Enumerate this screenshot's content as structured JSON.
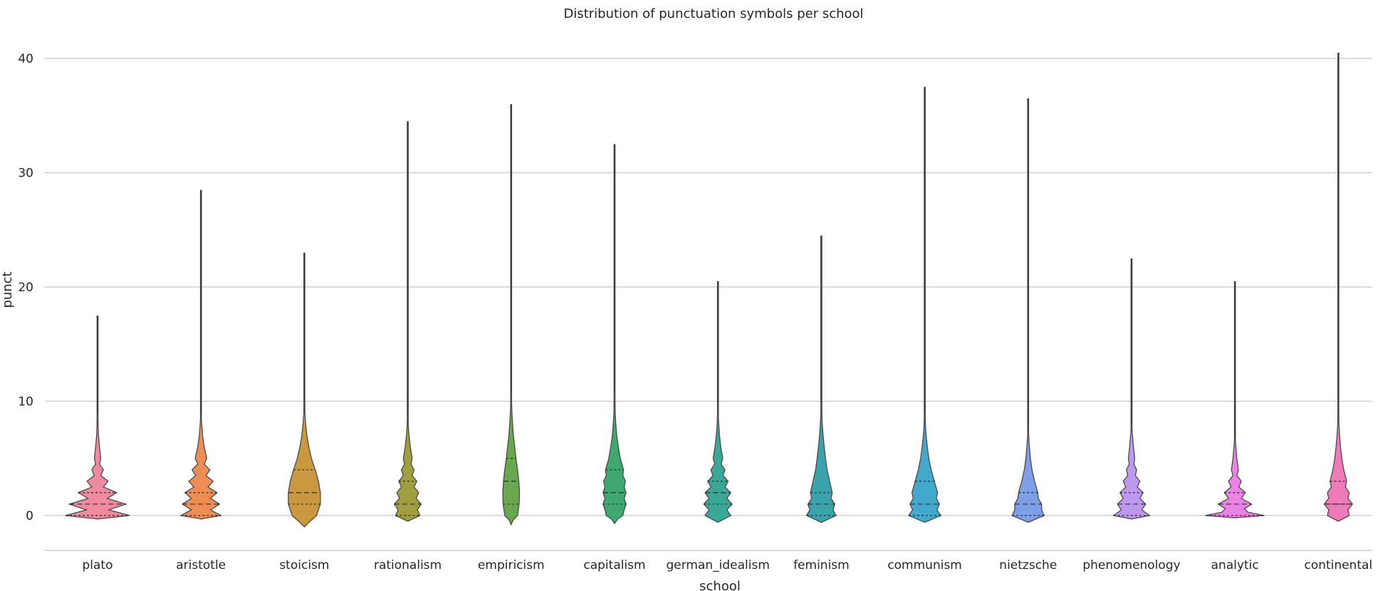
{
  "chart_data": {
    "type": "violin",
    "title": "Distribution of punctuation symbols per school",
    "xlabel": "school",
    "ylabel": "punct",
    "ylim": [
      -3,
      42
    ],
    "yticks": [
      0,
      10,
      20,
      30,
      40
    ],
    "grid": "horizontal",
    "categories": [
      "plato",
      "aristotle",
      "stoicism",
      "rationalism",
      "empiricism",
      "capitalism",
      "german_idealism",
      "feminism",
      "communism",
      "nietzsche",
      "phenomenology",
      "analytic",
      "continental"
    ],
    "colors": [
      "#f08aa0",
      "#ee8e54",
      "#c9983f",
      "#9f9f40",
      "#6aa84f",
      "#3fa870",
      "#3aa896",
      "#3aa3ab",
      "#42a8cc",
      "#7c9fe6",
      "#be98ee",
      "#ec82e6",
      "#ee7ab8"
    ],
    "series": [
      {
        "school": "plato",
        "min": 0,
        "max": 17.5,
        "q1": 0,
        "median": 1,
        "q3": 2,
        "density": [
          [
            -0.3,
            0.0
          ],
          [
            0,
            1.0
          ],
          [
            0.5,
            0.35
          ],
          [
            1,
            0.88
          ],
          [
            1.5,
            0.3
          ],
          [
            2,
            0.6
          ],
          [
            2.5,
            0.18
          ],
          [
            3,
            0.33
          ],
          [
            3.5,
            0.1
          ],
          [
            4,
            0.18
          ],
          [
            4.5,
            0.06
          ],
          [
            5,
            0.1
          ],
          [
            6,
            0.06
          ],
          [
            7,
            0.03
          ],
          [
            8,
            0.015
          ],
          [
            9,
            0.0
          ]
        ]
      },
      {
        "school": "aristotle",
        "min": 0,
        "max": 28.5,
        "q1": 0,
        "median": 1,
        "q3": 2,
        "density": [
          [
            -0.3,
            0.0
          ],
          [
            0,
            0.62
          ],
          [
            0.5,
            0.3
          ],
          [
            1,
            0.58
          ],
          [
            1.5,
            0.3
          ],
          [
            2,
            0.5
          ],
          [
            2.5,
            0.22
          ],
          [
            3,
            0.38
          ],
          [
            3.5,
            0.16
          ],
          [
            4,
            0.28
          ],
          [
            4.5,
            0.1
          ],
          [
            5,
            0.18
          ],
          [
            6,
            0.1
          ],
          [
            7,
            0.05
          ],
          [
            8,
            0.025
          ],
          [
            9,
            0.0
          ]
        ]
      },
      {
        "school": "stoicism",
        "min": 0,
        "max": 23,
        "q1": 1,
        "median": 2,
        "q3": 4,
        "density": [
          [
            -1,
            0.0
          ],
          [
            -0.5,
            0.18
          ],
          [
            0,
            0.38
          ],
          [
            1,
            0.5
          ],
          [
            2,
            0.5
          ],
          [
            3,
            0.44
          ],
          [
            4,
            0.34
          ],
          [
            5,
            0.22
          ],
          [
            6,
            0.14
          ],
          [
            7,
            0.08
          ],
          [
            8,
            0.04
          ],
          [
            9,
            0.015
          ],
          [
            10,
            0.0
          ]
        ]
      },
      {
        "school": "rationalism",
        "min": 0,
        "max": 34.5,
        "q1": 0,
        "median": 1,
        "q3": 3,
        "density": [
          [
            -0.5,
            0.0
          ],
          [
            0,
            0.38
          ],
          [
            0.5,
            0.3
          ],
          [
            1,
            0.42
          ],
          [
            1.5,
            0.26
          ],
          [
            2,
            0.34
          ],
          [
            2.5,
            0.2
          ],
          [
            3,
            0.28
          ],
          [
            3.5,
            0.14
          ],
          [
            4,
            0.2
          ],
          [
            4.5,
            0.1
          ],
          [
            5,
            0.14
          ],
          [
            6,
            0.08
          ],
          [
            7,
            0.04
          ],
          [
            8,
            0.015
          ],
          [
            9,
            0.0
          ]
        ]
      },
      {
        "school": "empiricism",
        "min": 0,
        "max": 36,
        "q1": 1,
        "median": 3,
        "q3": 5,
        "density": [
          [
            -0.8,
            0.0
          ],
          [
            -0.4,
            0.06
          ],
          [
            0,
            0.2
          ],
          [
            1,
            0.25
          ],
          [
            2,
            0.26
          ],
          [
            3,
            0.24
          ],
          [
            4,
            0.2
          ],
          [
            5,
            0.15
          ],
          [
            6,
            0.11
          ],
          [
            7,
            0.07
          ],
          [
            8,
            0.045
          ],
          [
            9,
            0.025
          ],
          [
            10,
            0.012
          ],
          [
            11,
            0.0
          ]
        ]
      },
      {
        "school": "capitalism",
        "min": 0,
        "max": 32.5,
        "q1": 1,
        "median": 2,
        "q3": 4,
        "density": [
          [
            -0.7,
            0.0
          ],
          [
            -0.3,
            0.1
          ],
          [
            0,
            0.26
          ],
          [
            0.5,
            0.3
          ],
          [
            1,
            0.36
          ],
          [
            1.5,
            0.3
          ],
          [
            2,
            0.36
          ],
          [
            2.5,
            0.3
          ],
          [
            3,
            0.34
          ],
          [
            3.5,
            0.26
          ],
          [
            4,
            0.28
          ],
          [
            5,
            0.18
          ],
          [
            6,
            0.12
          ],
          [
            7,
            0.07
          ],
          [
            8,
            0.04
          ],
          [
            9,
            0.02
          ],
          [
            10,
            0.01
          ],
          [
            11,
            0.0
          ]
        ]
      },
      {
        "school": "german_idealism",
        "min": 0,
        "max": 20.5,
        "q1": 1,
        "median": 2,
        "q3": 3,
        "density": [
          [
            -0.6,
            0.0
          ],
          [
            0,
            0.4
          ],
          [
            0.5,
            0.28
          ],
          [
            1,
            0.44
          ],
          [
            1.5,
            0.28
          ],
          [
            2,
            0.4
          ],
          [
            2.5,
            0.22
          ],
          [
            3,
            0.32
          ],
          [
            3.5,
            0.16
          ],
          [
            4,
            0.22
          ],
          [
            4.5,
            0.1
          ],
          [
            5,
            0.15
          ],
          [
            6,
            0.09
          ],
          [
            7,
            0.05
          ],
          [
            8,
            0.025
          ],
          [
            9,
            0.01
          ],
          [
            10,
            0.0
          ]
        ]
      },
      {
        "school": "feminism",
        "min": 0,
        "max": 24.5,
        "q1": 0,
        "median": 1,
        "q3": 2,
        "density": [
          [
            -0.6,
            0.0
          ],
          [
            0,
            0.46
          ],
          [
            0.5,
            0.36
          ],
          [
            1,
            0.42
          ],
          [
            1.5,
            0.3
          ],
          [
            2,
            0.34
          ],
          [
            3,
            0.26
          ],
          [
            4,
            0.18
          ],
          [
            5,
            0.13
          ],
          [
            6,
            0.09
          ],
          [
            7,
            0.055
          ],
          [
            8,
            0.03
          ],
          [
            9,
            0.015
          ],
          [
            10,
            0.0
          ]
        ]
      },
      {
        "school": "communism",
        "min": 0,
        "max": 37.5,
        "q1": 0,
        "median": 1,
        "q3": 3,
        "density": [
          [
            -0.6,
            0.0
          ],
          [
            0,
            0.5
          ],
          [
            0.5,
            0.38
          ],
          [
            1,
            0.46
          ],
          [
            1.5,
            0.36
          ],
          [
            2,
            0.4
          ],
          [
            3,
            0.3
          ],
          [
            4,
            0.2
          ],
          [
            5,
            0.13
          ],
          [
            6,
            0.08
          ],
          [
            7,
            0.045
          ],
          [
            8,
            0.02
          ],
          [
            9,
            0.0
          ]
        ]
      },
      {
        "school": "nietzsche",
        "min": 0,
        "max": 36.5,
        "q1": 0,
        "median": 1,
        "q3": 2,
        "density": [
          [
            -0.6,
            0.0
          ],
          [
            0,
            0.5
          ],
          [
            0.5,
            0.42
          ],
          [
            1,
            0.42
          ],
          [
            1.5,
            0.32
          ],
          [
            2,
            0.3
          ],
          [
            3,
            0.2
          ],
          [
            4,
            0.12
          ],
          [
            5,
            0.07
          ],
          [
            6,
            0.04
          ],
          [
            7,
            0.015
          ],
          [
            8,
            0.0
          ]
        ]
      },
      {
        "school": "phenomenology",
        "min": 0,
        "max": 22.5,
        "q1": 0,
        "median": 1,
        "q3": 2,
        "density": [
          [
            -0.3,
            0.0
          ],
          [
            0,
            0.56
          ],
          [
            0.5,
            0.32
          ],
          [
            1,
            0.44
          ],
          [
            1.5,
            0.26
          ],
          [
            2,
            0.36
          ],
          [
            2.5,
            0.18
          ],
          [
            3,
            0.26
          ],
          [
            3.5,
            0.12
          ],
          [
            4,
            0.16
          ],
          [
            4.5,
            0.07
          ],
          [
            5,
            0.1
          ],
          [
            6,
            0.06
          ],
          [
            7,
            0.03
          ],
          [
            8,
            0.0
          ]
        ]
      },
      {
        "school": "analytic",
        "min": 0,
        "max": 20.5,
        "q1": 0,
        "median": 1,
        "q3": 2,
        "density": [
          [
            -0.2,
            0.0
          ],
          [
            0,
            0.92
          ],
          [
            0.3,
            0.4
          ],
          [
            0.6,
            0.3
          ],
          [
            1,
            0.52
          ],
          [
            1.5,
            0.2
          ],
          [
            2,
            0.33
          ],
          [
            2.5,
            0.12
          ],
          [
            3,
            0.2
          ],
          [
            3.5,
            0.06
          ],
          [
            4,
            0.11
          ],
          [
            5,
            0.06
          ],
          [
            6,
            0.03
          ],
          [
            7,
            0.0
          ]
        ]
      },
      {
        "school": "continental",
        "min": 0,
        "max": 40.5,
        "q1": 1,
        "median": 1,
        "q3": 3,
        "density": [
          [
            -0.5,
            0.0
          ],
          [
            0,
            0.34
          ],
          [
            0.5,
            0.3
          ],
          [
            1,
            0.44
          ],
          [
            1.5,
            0.3
          ],
          [
            2,
            0.34
          ],
          [
            2.5,
            0.22
          ],
          [
            3,
            0.26
          ],
          [
            4,
            0.17
          ],
          [
            5,
            0.11
          ],
          [
            6,
            0.07
          ],
          [
            7,
            0.04
          ],
          [
            8,
            0.02
          ],
          [
            9,
            0.01
          ],
          [
            10,
            0.0
          ]
        ]
      }
    ]
  }
}
